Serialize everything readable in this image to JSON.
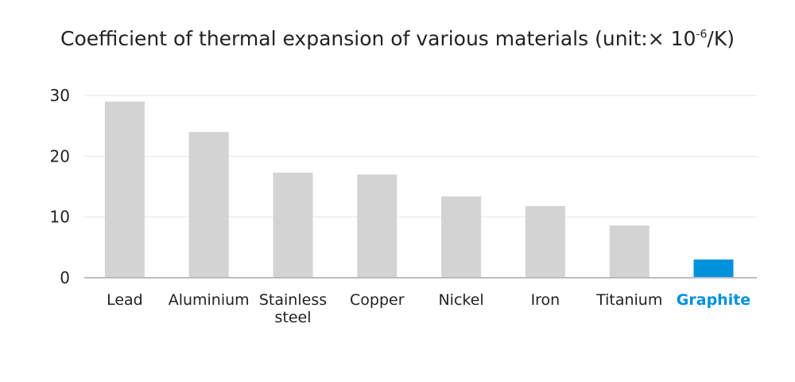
{
  "chart_data": {
    "type": "bar",
    "title_main": "Coefficient of thermal expansion of various materials (unit:× 10",
    "title_sup": "-6",
    "title_tail": "/K)",
    "categories": [
      [
        "Lead"
      ],
      [
        "Aluminium"
      ],
      [
        "Stainless",
        "steel"
      ],
      [
        "Copper"
      ],
      [
        "Nickel"
      ],
      [
        "Iron"
      ],
      [
        "Titanium"
      ],
      [
        "Graphite"
      ]
    ],
    "values": [
      29,
      24,
      17.3,
      17,
      13.4,
      11.8,
      8.6,
      3
    ],
    "ylim": [
      0,
      30
    ],
    "yticks": [
      0,
      10,
      20,
      30
    ],
    "grid": true,
    "colors": {
      "default_bar": "#d3d3d3",
      "highlight_bar": "#0091dc",
      "grid": "#e6e6e6",
      "axis": "#bdbdbd"
    },
    "highlight_index": 7
  }
}
